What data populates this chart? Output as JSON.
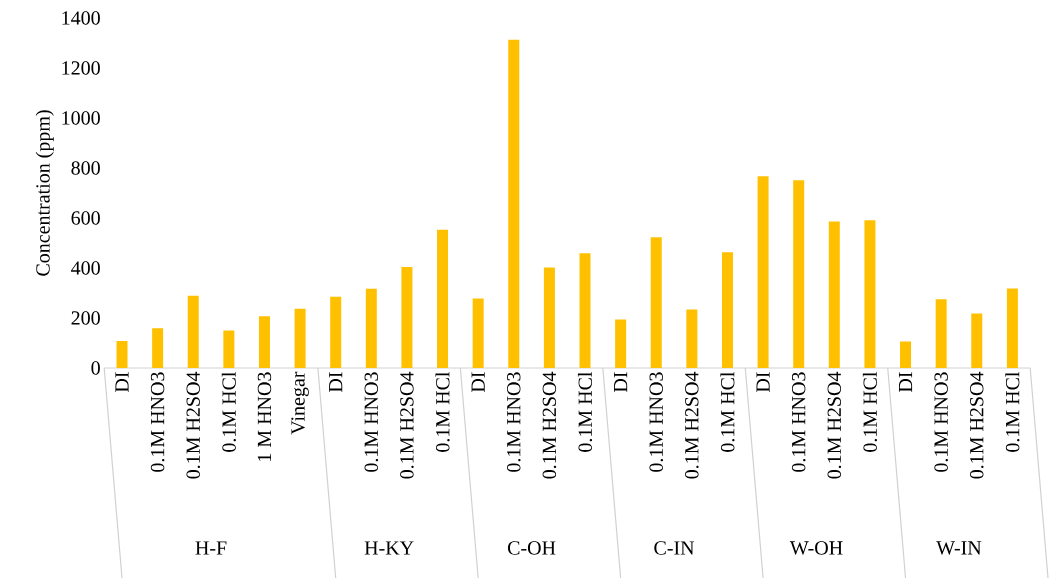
{
  "chart_data": {
    "type": "bar",
    "ylabel": "Concentration (ppm)",
    "categories": [
      "DI",
      "0.1M HNO3",
      "0.1M H2SO4",
      "0.1M HCl",
      "1 M HNO3",
      "Vinegar",
      "DI",
      "0.1M HNO3",
      "0.1M H2SO4",
      "0.1M HCl",
      "DI",
      "0.1M HNO3",
      "0.1M H2SO4",
      "0.1M HCl",
      "DI",
      "0.1M HNO3",
      "0.1M H2SO4",
      "0.1M HCl",
      "DI",
      "0.1M HNO3",
      "0.1M H2SO4",
      "0.1M HCl",
      "DI",
      "0.1M HNO3",
      "0.1M H2SO4",
      "0.1M HCl"
    ],
    "values": [
      108,
      159,
      289,
      150,
      207,
      237,
      285,
      317,
      404,
      553,
      278,
      1313,
      402,
      459,
      194,
      523,
      234,
      463,
      767,
      751,
      586,
      591,
      106,
      275,
      218,
      318
    ],
    "color": "#ffc000",
    "ylim": [
      0,
      1400
    ],
    "yticks": [
      0,
      200,
      400,
      600,
      800,
      1000,
      1200,
      1400
    ],
    "annotations": [
      "H-F",
      "H-KY",
      "C-OH",
      "C-IN",
      "W-OH",
      "W-IN"
    ]
  }
}
